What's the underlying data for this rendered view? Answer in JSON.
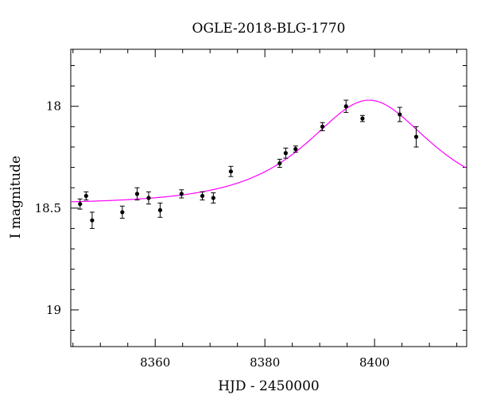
{
  "chart_data": {
    "type": "scatter",
    "title": "OGLE-2018-BLG-1770",
    "xlabel": "HJD - 2450000",
    "ylabel": "I magnitude",
    "xlim": [
      8344.6,
      8416.8
    ],
    "ylim": [
      19.18,
      17.72
    ],
    "y_inverted": true,
    "x_ticks": [
      8360,
      8380,
      8400
    ],
    "y_ticks": [
      18,
      18.5,
      19
    ],
    "y_tick_labels": [
      "18",
      "18.5",
      "19"
    ],
    "grid": false,
    "series": [
      {
        "type": "errorbar",
        "marker_color": "#000000",
        "points": [
          {
            "x": 8346.3,
            "y": 18.48,
            "err": 0.025
          },
          {
            "x": 8347.4,
            "y": 18.44,
            "err": 0.02
          },
          {
            "x": 8348.5,
            "y": 18.56,
            "err": 0.04
          },
          {
            "x": 8354.0,
            "y": 18.52,
            "err": 0.03
          },
          {
            "x": 8356.7,
            "y": 18.43,
            "err": 0.03
          },
          {
            "x": 8358.8,
            "y": 18.45,
            "err": 0.03
          },
          {
            "x": 8360.9,
            "y": 18.51,
            "err": 0.035
          },
          {
            "x": 8364.8,
            "y": 18.43,
            "err": 0.02
          },
          {
            "x": 8368.6,
            "y": 18.44,
            "err": 0.02
          },
          {
            "x": 8370.6,
            "y": 18.45,
            "err": 0.025
          },
          {
            "x": 8373.8,
            "y": 18.32,
            "err": 0.025
          },
          {
            "x": 8382.7,
            "y": 18.28,
            "err": 0.02
          },
          {
            "x": 8383.8,
            "y": 18.23,
            "err": 0.025
          },
          {
            "x": 8385.6,
            "y": 18.21,
            "err": 0.015
          },
          {
            "x": 8390.5,
            "y": 18.1,
            "err": 0.02
          },
          {
            "x": 8394.8,
            "y": 18.0,
            "err": 0.03
          },
          {
            "x": 8397.8,
            "y": 18.06,
            "err": 0.015
          },
          {
            "x": 8404.6,
            "y": 18.04,
            "err": 0.035
          },
          {
            "x": 8407.6,
            "y": 18.15,
            "err": 0.05
          }
        ]
      },
      {
        "type": "model-curve",
        "color": "#ff00ff",
        "t0": 8399.0,
        "tE": 16.0,
        "u0": 0.75,
        "i_base": 18.48,
        "x_range": [
          8344.6,
          8416.8
        ]
      }
    ]
  }
}
